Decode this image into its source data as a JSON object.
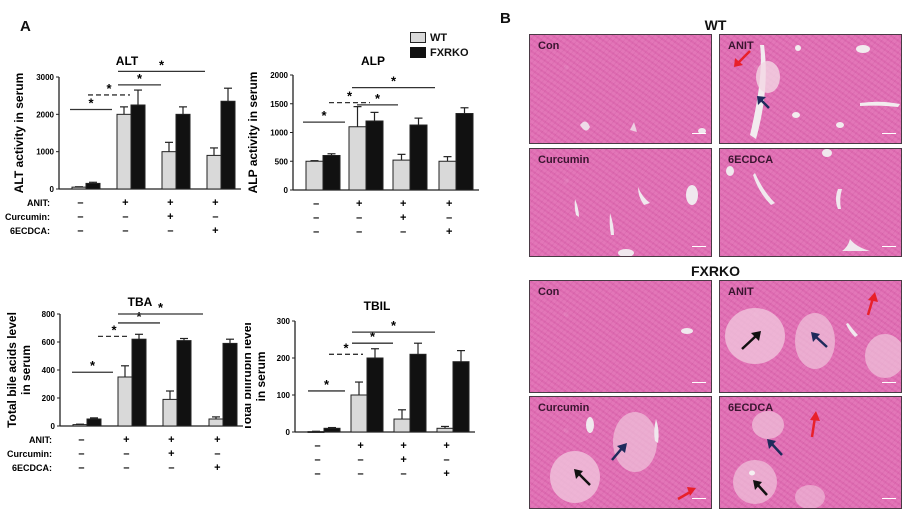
{
  "panel_a": {
    "letter": "A"
  },
  "panel_b": {
    "letter": "B"
  },
  "legend": {
    "items": [
      {
        "label": "WT",
        "color": "#d9d9d9"
      },
      {
        "label": "FXRKO",
        "color": "#111111"
      }
    ]
  },
  "treatments": {
    "row_labels": [
      "ANIT:",
      "Curcumin:",
      "6ECDCA:"
    ],
    "groups": [
      {
        "ANIT": "–",
        "Curcumin": "–",
        "6ECDCA": "–"
      },
      {
        "ANIT": "+",
        "Curcumin": "–",
        "6ECDCA": "–"
      },
      {
        "ANIT": "+",
        "Curcumin": "+",
        "6ECDCA": "–"
      },
      {
        "ANIT": "+",
        "Curcumin": "–",
        "6ECDCA": "+"
      }
    ]
  },
  "chart_data": [
    {
      "type": "bar",
      "title": "ALT",
      "ylabel": "ALT activity in serum",
      "xlabel": "",
      "ylim": [
        0,
        3000
      ],
      "yticks": [
        0,
        1000,
        2000,
        3000
      ],
      "categories": [
        "Control",
        "ANIT",
        "ANIT+Curcumin",
        "ANIT+6ECDCA"
      ],
      "series": [
        {
          "name": "WT",
          "values": [
            50,
            2000,
            1000,
            900
          ],
          "errors": [
            10,
            200,
            250,
            200
          ]
        },
        {
          "name": "FXRKO",
          "values": [
            150,
            2250,
            2000,
            2350
          ],
          "errors": [
            30,
            400,
            200,
            350
          ]
        }
      ],
      "significance": [
        "*",
        "*",
        "*",
        "*"
      ],
      "legend_position": "none"
    },
    {
      "type": "bar",
      "title": "ALP",
      "ylabel": "ALP activity in serum",
      "xlabel": "",
      "ylim": [
        0,
        2000
      ],
      "yticks": [
        0,
        500,
        1000,
        1500,
        2000
      ],
      "categories": [
        "Control",
        "ANIT",
        "ANIT+Curcumin",
        "ANIT+6ECDCA"
      ],
      "series": [
        {
          "name": "WT",
          "values": [
            500,
            1100,
            520,
            500
          ],
          "errors": [
            10,
            350,
            100,
            80
          ]
        },
        {
          "name": "FXRKO",
          "values": [
            600,
            1200,
            1130,
            1330
          ],
          "errors": [
            30,
            150,
            120,
            100
          ]
        }
      ],
      "significance": [
        "*",
        "*",
        "*",
        "*"
      ],
      "legend_position": "upper right",
      "legend": [
        "WT",
        "FXRKO"
      ]
    },
    {
      "type": "bar",
      "title": "TBA",
      "ylabel": "Total bile acids level in serum",
      "xlabel": "",
      "ylim": [
        0,
        800
      ],
      "yticks": [
        0,
        200,
        400,
        600,
        800
      ],
      "categories": [
        "Control",
        "ANIT",
        "ANIT+Curcumin",
        "ANIT+6ECDCA"
      ],
      "series": [
        {
          "name": "WT",
          "values": [
            10,
            350,
            190,
            50
          ],
          "errors": [
            3,
            80,
            60,
            15
          ]
        },
        {
          "name": "FXRKO",
          "values": [
            50,
            620,
            610,
            590
          ],
          "errors": [
            8,
            35,
            15,
            30
          ]
        }
      ],
      "significance": [
        "*",
        "*",
        "*",
        "*"
      ],
      "legend_position": "none"
    },
    {
      "type": "bar",
      "title": "TBIL",
      "ylabel": "Total bilirubin level in serum",
      "xlabel": "",
      "ylim": [
        0,
        300
      ],
      "yticks": [
        0,
        100,
        200,
        300
      ],
      "categories": [
        "Control",
        "ANIT",
        "ANIT+Curcumin",
        "ANIT+6ECDCA"
      ],
      "series": [
        {
          "name": "WT",
          "values": [
            1,
            100,
            35,
            10
          ],
          "errors": [
            1,
            35,
            25,
            5
          ]
        },
        {
          "name": "FXRKO",
          "values": [
            10,
            200,
            210,
            190
          ],
          "errors": [
            2,
            25,
            30,
            30
          ]
        }
      ],
      "significance": [
        "*",
        "*",
        "*",
        "*"
      ],
      "legend_position": "none"
    }
  ],
  "histology": {
    "groups": [
      {
        "title": "WT",
        "panels": [
          "Con",
          "ANIT",
          "Curcumin",
          "6ECDCA"
        ]
      },
      {
        "title": "FXRKO",
        "panels": [
          "Con",
          "ANIT",
          "Curcumin",
          "6ECDCA"
        ]
      }
    ],
    "arrow_colors": {
      "red": "#e8202a",
      "blue": "#1f2a5c",
      "black": "#111111"
    }
  }
}
